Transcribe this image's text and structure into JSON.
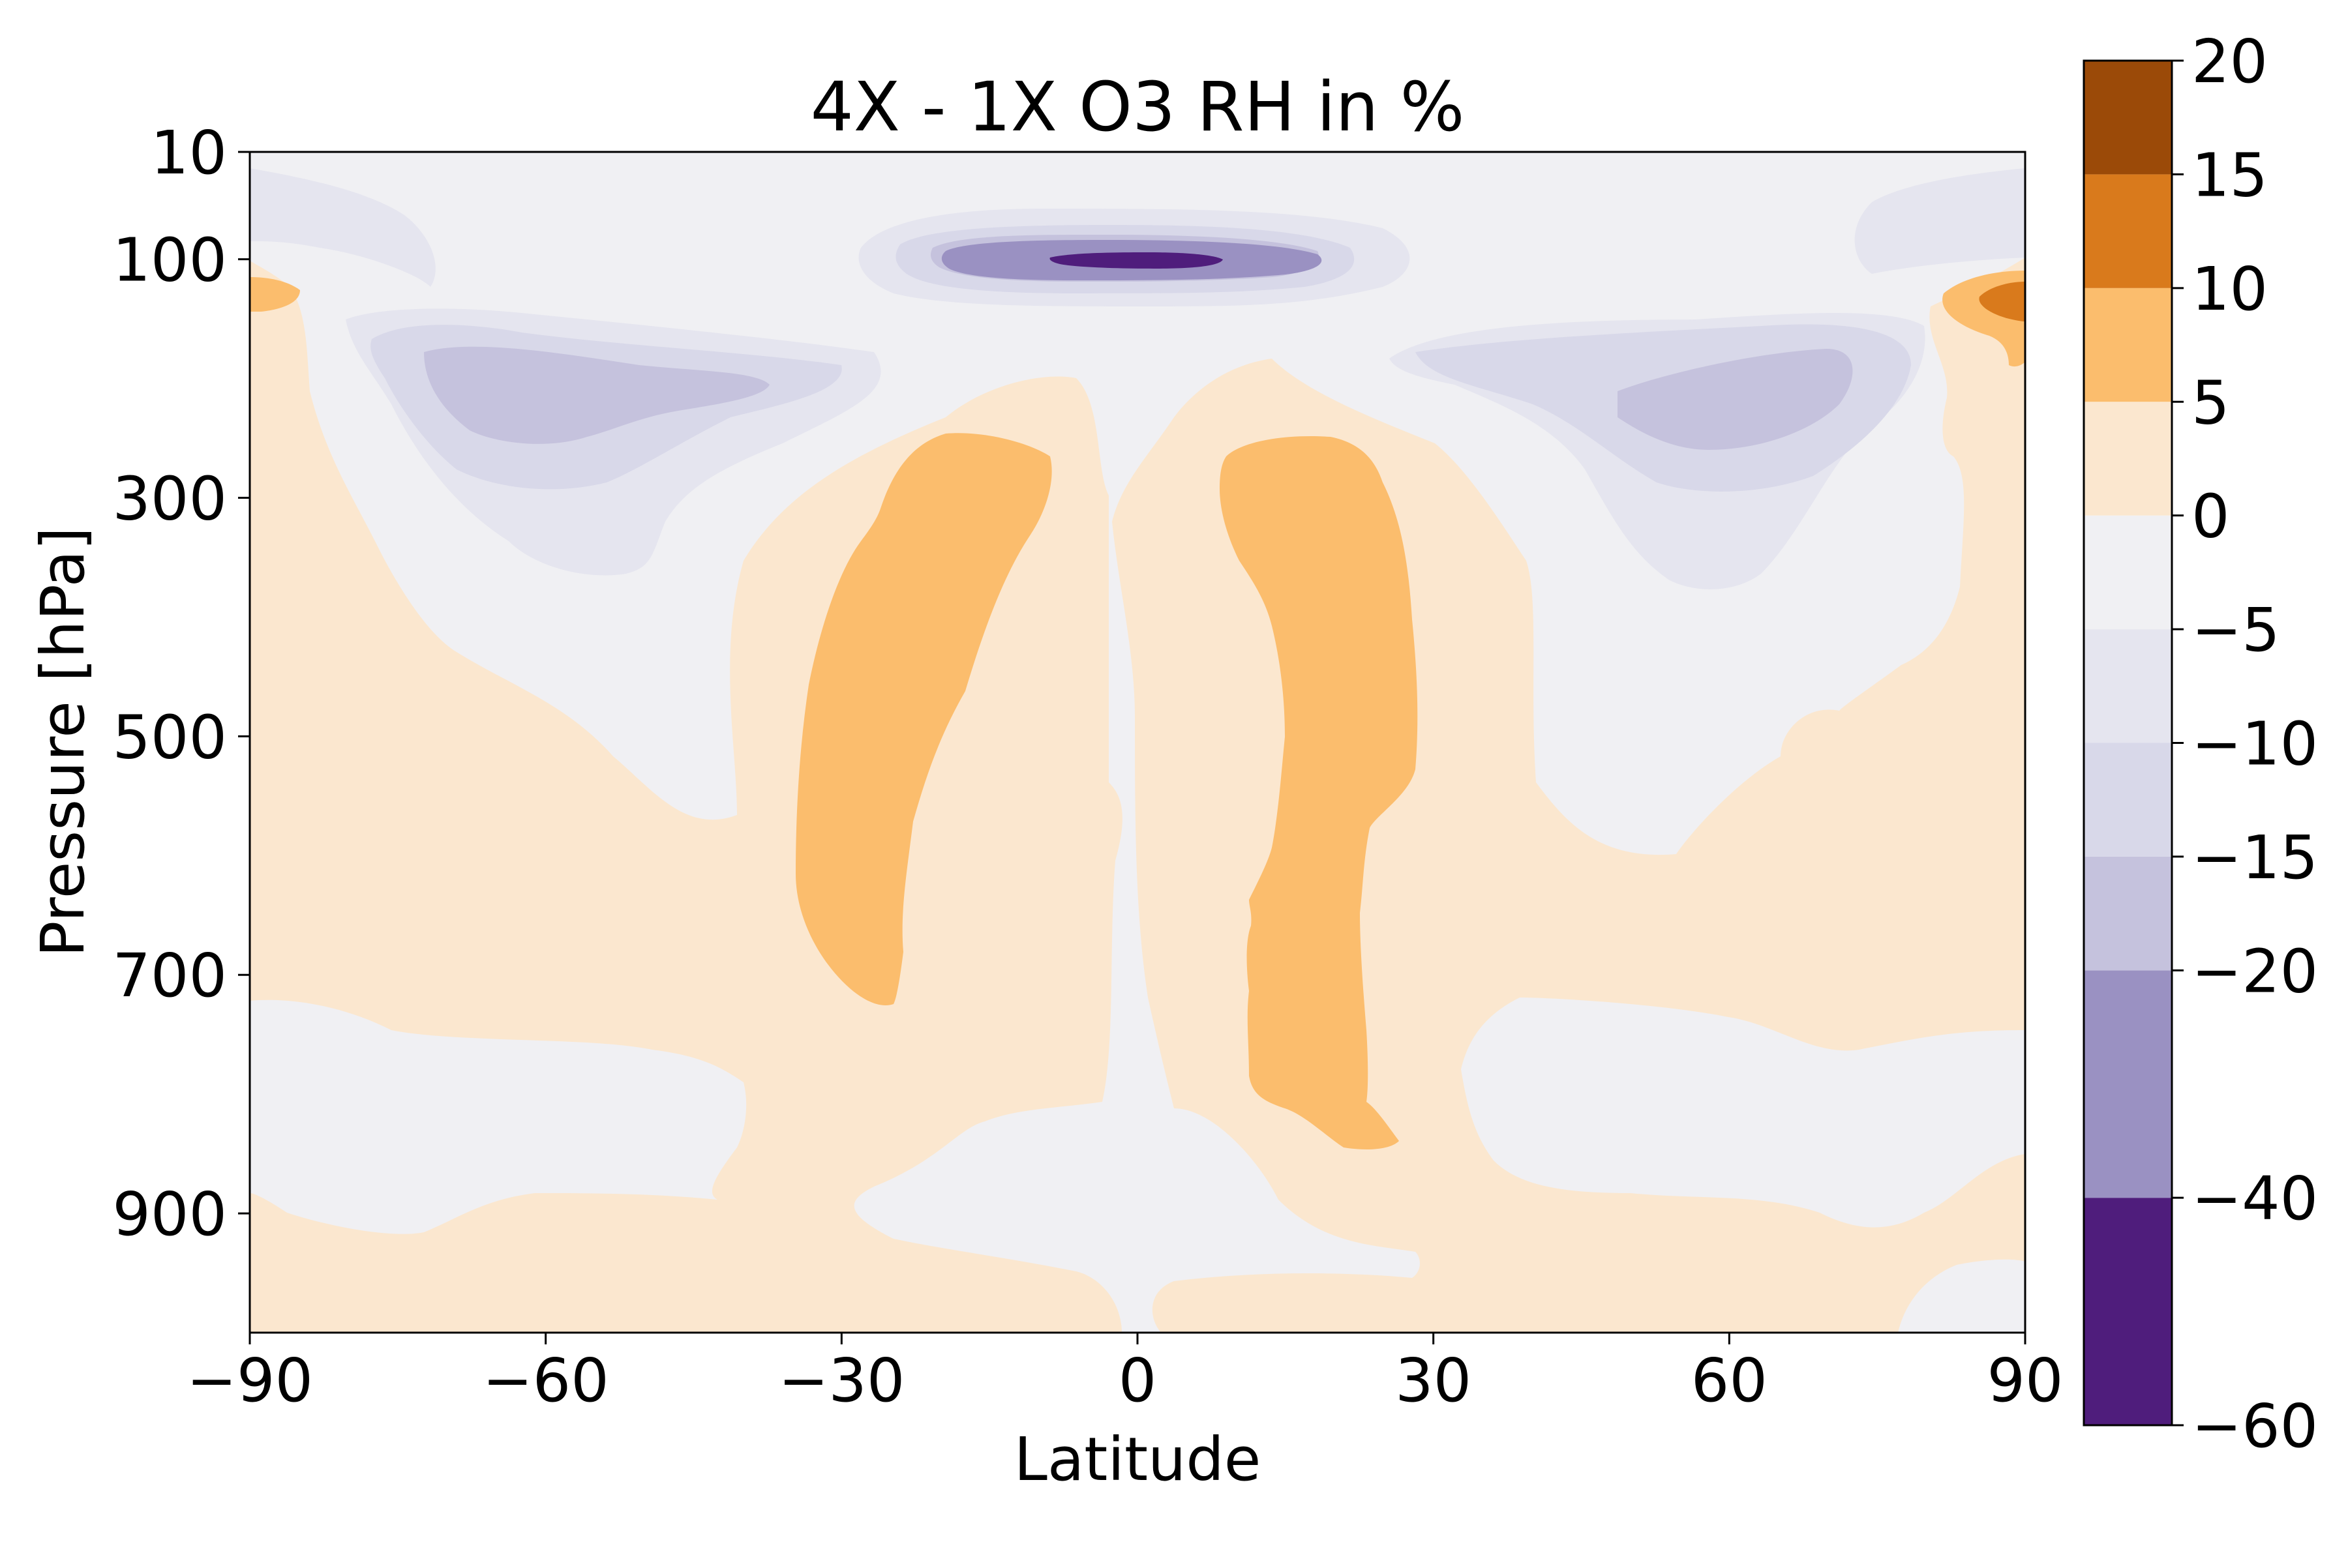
{
  "chart_data": {
    "type": "heatmap",
    "title": "4X - 1X O3 RH in %",
    "xlabel": "Latitude",
    "ylabel": "Pressure [hPa]",
    "xlim": [
      -90,
      90
    ],
    "ylim": [
      1000,
      10
    ],
    "xticks": [
      -90,
      -60,
      -30,
      0,
      30,
      60,
      90
    ],
    "xtick_labels": [
      "−90",
      "−60",
      "−30",
      "0",
      "30",
      "60",
      "90"
    ],
    "yticks": [
      10,
      100,
      300,
      500,
      700,
      900
    ],
    "ytick_labels": [
      "10",
      "100",
      "300",
      "500",
      "700",
      "900"
    ],
    "grid": false,
    "colorbar": {
      "position": "right",
      "levels": [
        -60,
        -40,
        -20,
        -15,
        -10,
        -5,
        0,
        5,
        10,
        15,
        20
      ],
      "tick_labels": [
        "−60",
        "−40",
        "−20",
        "−15",
        "−10",
        "−5",
        "0",
        "5",
        "10",
        "15",
        "20"
      ],
      "colors": [
        "#4f1d7c",
        "#9a91c2",
        "#c5c2dd",
        "#d8d8e9",
        "#e5e5ef",
        "#f0f0f3",
        "#fbe7cf",
        "#fbbd6d",
        "#d97a1c",
        "#9b4a08"
      ]
    },
    "regions": [
      {
        "name": "min-core-equator-100hPa",
        "value": -45,
        "lat_range": [
          -10,
          10
        ],
        "pressure": 95
      },
      {
        "name": "strong-negative-equator-100hPa",
        "value": -25,
        "lat_range": [
          -22,
          22
        ],
        "pressure_range": [
          75,
          120
        ]
      },
      {
        "name": "negative-sh-midlat-uppertrop",
        "value": -17,
        "lat_range": [
          -80,
          -38
        ],
        "pressure_range": [
          140,
          330
        ]
      },
      {
        "name": "negative-nh-midlat-uppertrop",
        "value": -17,
        "lat_range": [
          35,
          82
        ],
        "pressure_range": [
          140,
          330
        ]
      },
      {
        "name": "positive-sh-tropics-midtrop",
        "value": 7,
        "lat_range": [
          -35,
          -10
        ],
        "pressure_range": [
          270,
          720
        ]
      },
      {
        "name": "positive-nh-tropics-midtrop",
        "value": 7,
        "lat_range": [
          8,
          28
        ],
        "pressure_range": [
          270,
          830
        ]
      },
      {
        "name": "positive-nh-pole-100hPa",
        "value": 12,
        "lat_range": [
          80,
          90
        ],
        "pressure_range": [
          100,
          130
        ]
      },
      {
        "name": "positive-sh-pole-100hPa",
        "value": 7,
        "lat_range": [
          -90,
          -82
        ],
        "pressure_range": [
          95,
          125
        ]
      }
    ]
  }
}
